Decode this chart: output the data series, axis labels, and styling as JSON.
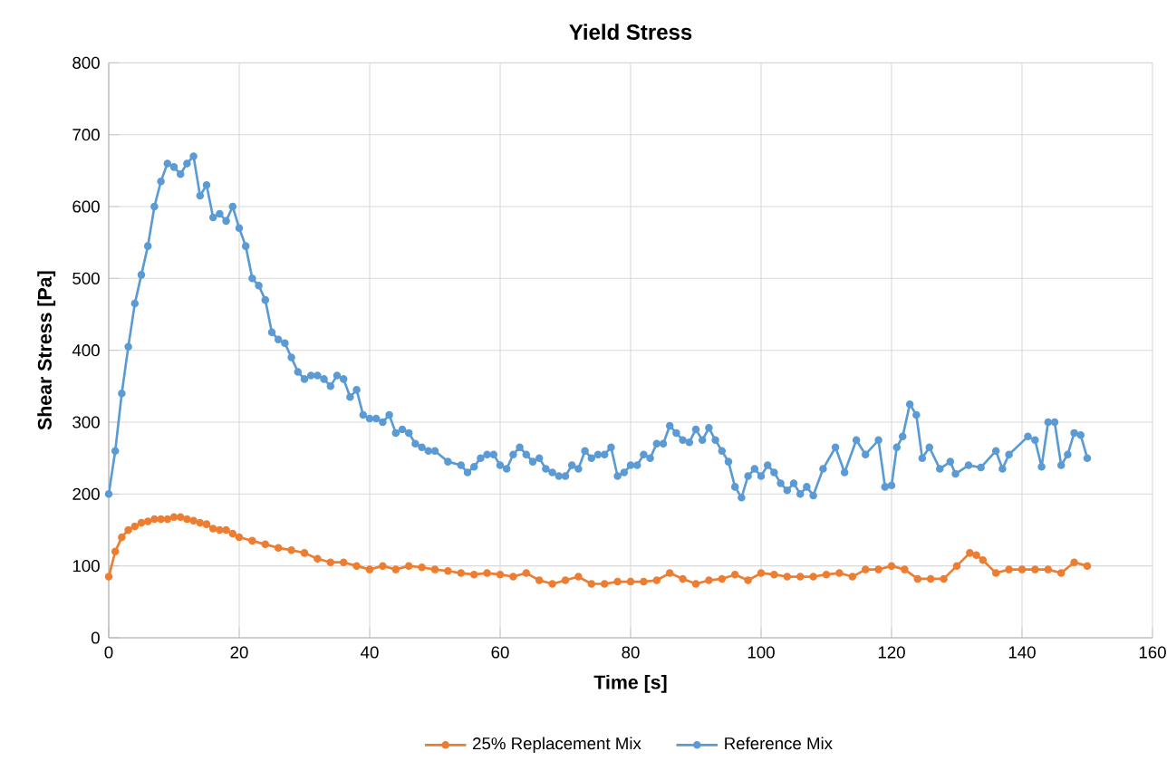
{
  "chart_data": {
    "type": "line",
    "title": "Yield Stress",
    "xlabel": "Time [s]",
    "ylabel": "Shear Stress [Pa]",
    "xlim": [
      0,
      160
    ],
    "xticks": [
      0,
      20,
      40,
      60,
      80,
      100,
      120,
      140,
      160
    ],
    "ylim": [
      0,
      800
    ],
    "yticks": [
      0,
      100,
      200,
      300,
      400,
      500,
      600,
      700,
      800
    ],
    "grid": true,
    "legend": "bottom",
    "marker": "circle",
    "line_style": "solid",
    "series": [
      {
        "name": "25% Replacement Mix",
        "color": "#ed7d31",
        "x": [
          0,
          1,
          2,
          3,
          4,
          5,
          6,
          7,
          8,
          9,
          10,
          11,
          12,
          13,
          14,
          15,
          16,
          17,
          18,
          19,
          20,
          22,
          24,
          26,
          28,
          30,
          32,
          34,
          36,
          38,
          40,
          42,
          44,
          46,
          48,
          50,
          52,
          54,
          56,
          58,
          60,
          62,
          64,
          66,
          68,
          70,
          72,
          74,
          76,
          78,
          80,
          82,
          84,
          86,
          88,
          90,
          92,
          94,
          96,
          98,
          100,
          102,
          104,
          106,
          108,
          110,
          112,
          114,
          116,
          118,
          120,
          122,
          124,
          126,
          128,
          130,
          132,
          133,
          134,
          136,
          138,
          140,
          142,
          144,
          146,
          148,
          150
        ],
        "values": [
          85,
          120,
          140,
          150,
          155,
          160,
          162,
          165,
          165,
          165,
          168,
          168,
          165,
          163,
          160,
          158,
          152,
          150,
          150,
          145,
          140,
          135,
          130,
          125,
          122,
          118,
          110,
          105,
          105,
          100,
          95,
          100,
          95,
          100,
          98,
          95,
          93,
          90,
          88,
          90,
          88,
          85,
          90,
          80,
          75,
          80,
          85,
          75,
          75,
          78,
          78,
          78,
          80,
          90,
          82,
          75,
          80,
          82,
          88,
          80,
          90,
          88,
          85,
          85,
          85,
          88,
          90,
          85,
          95,
          95,
          100,
          95,
          82,
          82,
          82,
          100,
          118,
          115,
          108,
          90,
          95,
          95,
          95,
          95,
          90,
          105,
          100
        ]
      },
      {
        "name": "Reference Mix",
        "color": "#5b9bd5",
        "x": [
          0,
          1,
          2,
          3,
          4,
          5,
          6,
          7,
          8,
          9,
          10,
          11,
          12,
          13,
          14,
          15,
          16,
          17,
          18,
          19,
          20,
          21,
          22,
          23,
          24,
          25,
          26,
          27,
          28,
          29,
          30,
          31,
          32,
          33,
          34,
          35,
          36,
          37,
          38,
          39,
          40,
          41,
          42,
          43,
          44,
          45,
          46,
          47,
          48,
          49,
          50,
          52,
          54,
          55,
          56,
          57,
          58,
          59,
          60,
          61,
          62,
          63,
          64,
          65,
          66,
          67,
          68,
          69,
          70,
          71,
          72,
          73,
          74,
          75,
          76,
          77,
          78,
          79,
          80,
          81,
          82,
          83,
          84,
          85,
          86,
          87,
          88,
          89,
          90,
          91,
          92,
          93,
          94,
          95,
          96,
          97,
          98,
          99,
          100,
          101,
          102,
          103,
          104,
          105,
          106,
          107,
          108,
          109.5,
          111.4,
          112.8,
          114.6,
          116,
          118,
          119,
          120,
          120.8,
          121.7,
          122.8,
          123.8,
          124.7,
          125.8,
          127.4,
          129,
          129.8,
          131.8,
          133.7,
          136,
          137,
          138,
          140.9,
          142,
          143,
          144,
          145,
          146,
          147,
          148,
          149,
          150
        ],
        "values": [
          200,
          260,
          340,
          405,
          465,
          505,
          545,
          600,
          635,
          660,
          655,
          645,
          660,
          670,
          615,
          630,
          585,
          590,
          580,
          600,
          570,
          545,
          500,
          490,
          470,
          425,
          415,
          410,
          390,
          370,
          360,
          365,
          365,
          360,
          350,
          365,
          360,
          335,
          345,
          310,
          305,
          305,
          300,
          310,
          285,
          290,
          285,
          270,
          265,
          260,
          260,
          245,
          240,
          230,
          238,
          250,
          255,
          255,
          240,
          235,
          255,
          265,
          255,
          245,
          250,
          235,
          230,
          225,
          225,
          240,
          235,
          260,
          250,
          255,
          255,
          265,
          225,
          230,
          240,
          240,
          255,
          250,
          270,
          270,
          295,
          285,
          275,
          272,
          290,
          275,
          292,
          275,
          260,
          245,
          210,
          195,
          225,
          235,
          225,
          240,
          230,
          215,
          205,
          215,
          200,
          210,
          198,
          235,
          265,
          230,
          275,
          255,
          275,
          210,
          212,
          265,
          280,
          325,
          310,
          250,
          265,
          235,
          245,
          228,
          240,
          237,
          260,
          235,
          255,
          280,
          275,
          238,
          300,
          300,
          240,
          255,
          285,
          282,
          250
        ]
      }
    ]
  }
}
